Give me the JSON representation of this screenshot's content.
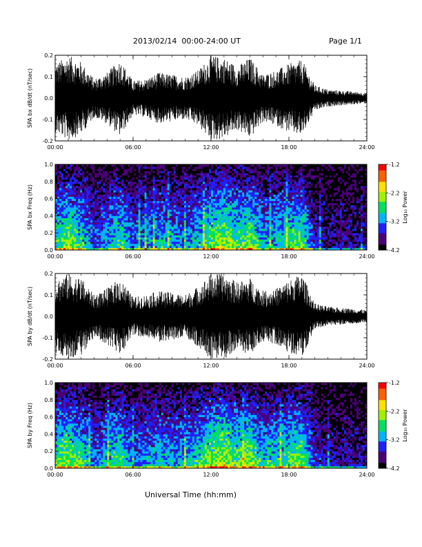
{
  "header": {
    "title": "2013/02/14  00:00-24:00 UT",
    "page": "Page 1/1"
  },
  "chart_data": [
    {
      "type": "line",
      "ylabel": "SPA bx dB/dt (nT/sec)",
      "xlim": [
        0,
        24
      ],
      "ylim": [
        -0.2,
        0.2
      ],
      "y_ticks": [
        "0.2",
        "0.1",
        "0.0",
        "-0.1",
        "-0.2"
      ],
      "x_ticks": [
        "00:00",
        "06:00",
        "12:00",
        "18:00",
        "24:00"
      ],
      "envelope": {
        "hours": [
          0,
          1,
          2,
          3,
          4,
          5,
          6,
          7,
          8,
          9,
          10,
          11,
          12,
          13,
          14,
          15,
          16,
          17,
          18,
          19,
          20,
          21,
          22,
          23,
          24
        ],
        "amplitude": [
          0.16,
          0.2,
          0.17,
          0.09,
          0.12,
          0.18,
          0.08,
          0.09,
          0.12,
          0.11,
          0.1,
          0.13,
          0.2,
          0.19,
          0.15,
          0.19,
          0.11,
          0.13,
          0.16,
          0.18,
          0.06,
          0.04,
          0.035,
          0.03,
          0.025
        ]
      }
    },
    {
      "type": "heatmap",
      "ylabel": "SPA bx Freq (Hz)",
      "xlim": [
        0,
        24
      ],
      "ylim": [
        0,
        1.0
      ],
      "y_ticks": [
        "1.0",
        "0.8",
        "0.6",
        "0.4",
        "0.2",
        "0.0"
      ],
      "x_ticks": [
        "00:00",
        "06:00",
        "12:00",
        "18:00",
        "24:00"
      ],
      "colorbar": {
        "label": "Log₁₀ Power",
        "range": [
          -4.2,
          -1.2
        ],
        "ticks": [
          "-1.2",
          "-2.2",
          "-3.2",
          "-4.2"
        ],
        "colors": [
          "#000000",
          "#4a0078",
          "#2020ff",
          "#00b4ff",
          "#00e060",
          "#a0f000",
          "#ffe000",
          "#ff6000",
          "#ff0000"
        ]
      },
      "activity": {
        "hours": [
          0,
          1,
          2,
          3,
          4,
          5,
          6,
          7,
          8,
          9,
          10,
          11,
          12,
          13,
          14,
          15,
          16,
          17,
          18,
          19,
          20,
          21,
          22,
          23,
          24
        ],
        "level": [
          0.55,
          0.7,
          0.55,
          0.3,
          0.45,
          0.6,
          0.35,
          0.4,
          0.5,
          0.45,
          0.4,
          0.5,
          0.65,
          0.75,
          0.6,
          0.7,
          0.45,
          0.5,
          0.6,
          0.65,
          0.25,
          0.2,
          0.2,
          0.18,
          0.15
        ]
      }
    },
    {
      "type": "line",
      "ylabel": "SPA by dB/dt (nT/sec)",
      "xlim": [
        0,
        24
      ],
      "ylim": [
        -0.2,
        0.2
      ],
      "y_ticks": [
        "0.2",
        "0.1",
        "0.0",
        "-0.1",
        "-0.2"
      ],
      "x_ticks": [
        "00:00",
        "06:00",
        "12:00",
        "18:00",
        "24:00"
      ],
      "envelope": {
        "hours": [
          0,
          1,
          2,
          3,
          4,
          5,
          6,
          7,
          8,
          9,
          10,
          11,
          12,
          13,
          14,
          15,
          16,
          17,
          18,
          19,
          20,
          21,
          22,
          23,
          24
        ],
        "amplitude": [
          0.17,
          0.2,
          0.18,
          0.1,
          0.13,
          0.18,
          0.09,
          0.1,
          0.12,
          0.11,
          0.1,
          0.14,
          0.2,
          0.2,
          0.16,
          0.18,
          0.12,
          0.13,
          0.17,
          0.2,
          0.06,
          0.045,
          0.04,
          0.035,
          0.03
        ]
      }
    },
    {
      "type": "heatmap",
      "ylabel": "SPA by Freq (Hz)",
      "xlim": [
        0,
        24
      ],
      "ylim": [
        0,
        1.0
      ],
      "y_ticks": [
        "1.0",
        "0.8",
        "0.6",
        "0.4",
        "0.2",
        "0.0"
      ],
      "x_ticks": [
        "00:00",
        "06:00",
        "12:00",
        "18:00",
        "24:00"
      ],
      "colorbar": {
        "label": "Log₁₀ Power",
        "range": [
          -4.2,
          -1.2
        ],
        "ticks": [
          "-1.2",
          "-2.2",
          "-3.2",
          "-4.2"
        ],
        "colors": [
          "#000000",
          "#4a0078",
          "#2020ff",
          "#00b4ff",
          "#00e060",
          "#a0f000",
          "#ffe000",
          "#ff6000",
          "#ff0000"
        ]
      },
      "activity": {
        "hours": [
          0,
          1,
          2,
          3,
          4,
          5,
          6,
          7,
          8,
          9,
          10,
          11,
          12,
          13,
          14,
          15,
          16,
          17,
          18,
          19,
          20,
          21,
          22,
          23,
          24
        ],
        "level": [
          0.6,
          0.72,
          0.6,
          0.35,
          0.5,
          0.62,
          0.38,
          0.45,
          0.5,
          0.45,
          0.45,
          0.55,
          0.7,
          0.78,
          0.62,
          0.7,
          0.5,
          0.55,
          0.62,
          0.68,
          0.28,
          0.22,
          0.22,
          0.2,
          0.18
        ]
      }
    }
  ],
  "xlabel": "Universal Time (hh:mm)"
}
